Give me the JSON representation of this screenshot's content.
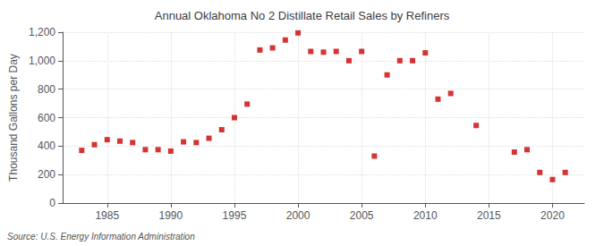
{
  "chart_data": {
    "type": "scatter",
    "title": "Annual Oklahoma No 2 Distillate Retail Sales by Refiners",
    "ylabel": "Thousand Gallons per Day",
    "source": "Source: U.S. Energy Information Administration",
    "x": [
      1983,
      1984,
      1985,
      1986,
      1987,
      1988,
      1989,
      1990,
      1991,
      1992,
      1993,
      1994,
      1995,
      1996,
      1997,
      1998,
      1999,
      2000,
      2001,
      2002,
      2003,
      2004,
      2005,
      2006,
      2007,
      2008,
      2009,
      2010,
      2011,
      2012,
      2014,
      2017,
      2018,
      2019,
      2020,
      2021
    ],
    "values": [
      370,
      410,
      445,
      435,
      425,
      375,
      375,
      365,
      430,
      425,
      455,
      515,
      600,
      695,
      1075,
      1090,
      1145,
      1195,
      1065,
      1060,
      1065,
      1000,
      1065,
      330,
      900,
      1000,
      1000,
      1055,
      730,
      770,
      545,
      358,
      375,
      215,
      165,
      215
    ],
    "color": "#cc0000",
    "marker": "square",
    "grid": true,
    "xlim": [
      1981.5,
      2022.5
    ],
    "xticks": [
      1985,
      1990,
      1995,
      2000,
      2005,
      2010,
      2015,
      2020
    ],
    "ylim": [
      0,
      1200
    ],
    "yticks": [
      0,
      200,
      400,
      600,
      800,
      {
        "value": 1000,
        "label": "1,000"
      },
      {
        "value": 1200,
        "label": "1,200"
      }
    ]
  }
}
